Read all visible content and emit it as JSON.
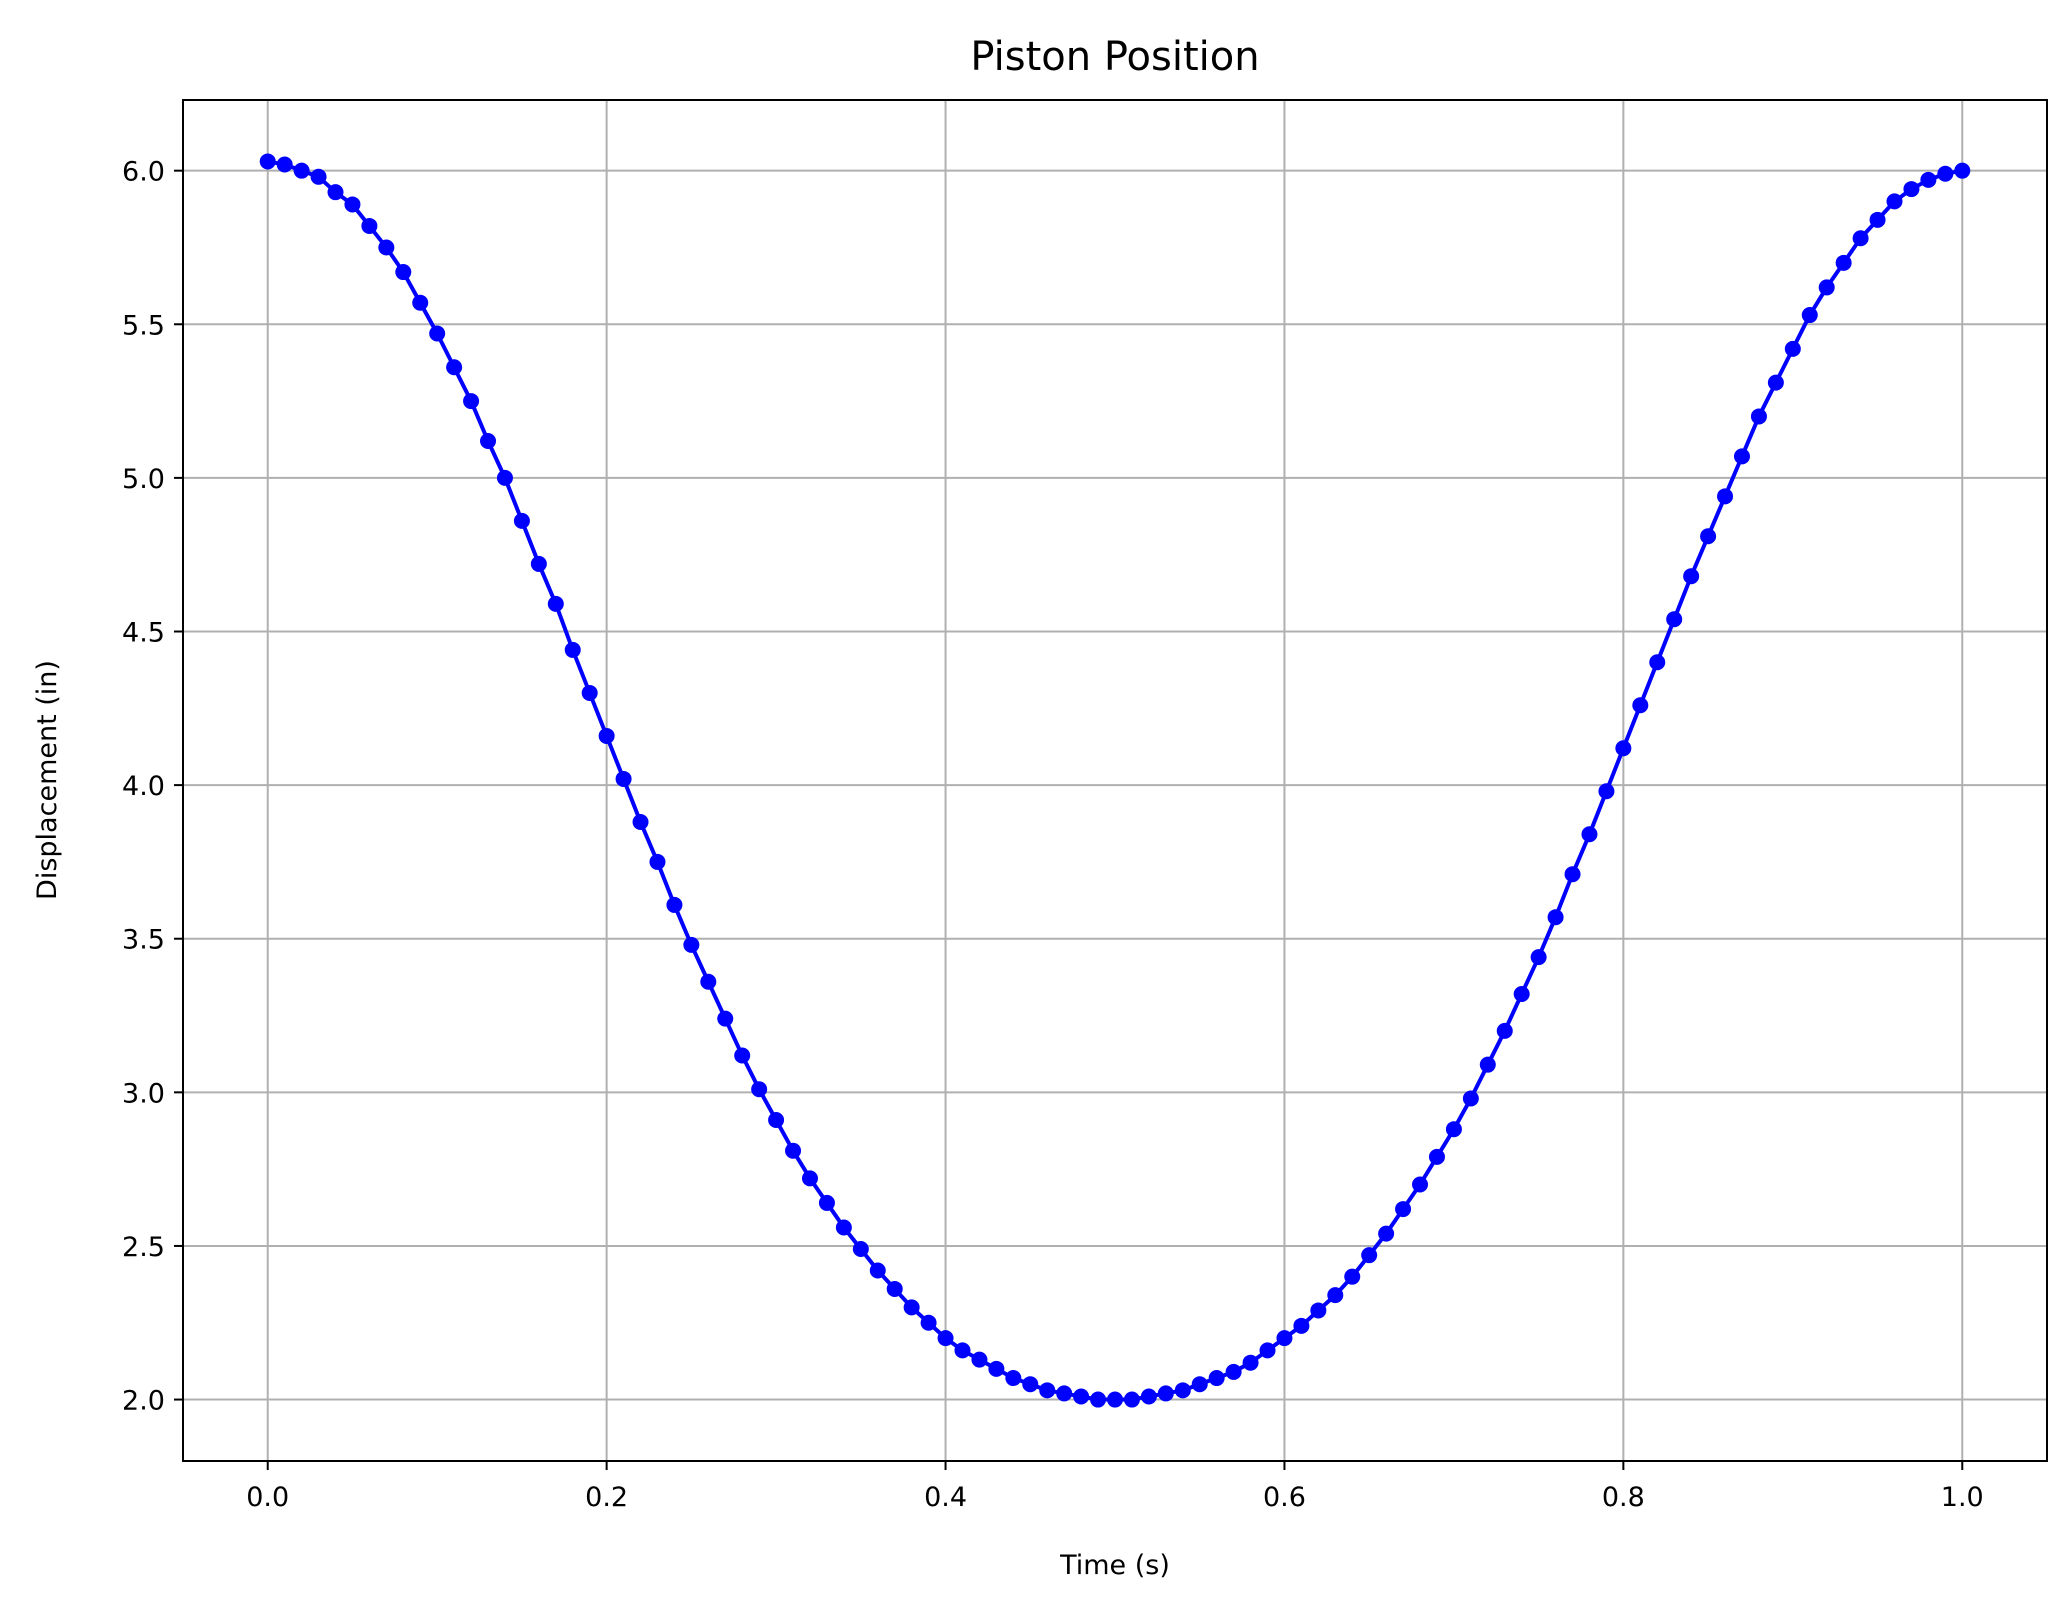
{
  "chart_data": {
    "type": "line",
    "title": "Piston Position",
    "xlabel": "Time (s)",
    "ylabel": "Displacement (in)",
    "xlim": [
      -0.05,
      1.05
    ],
    "ylim": [
      1.8,
      6.23
    ],
    "xticks": [
      0.0,
      0.2,
      0.4,
      0.6,
      0.8,
      1.0
    ],
    "xtick_labels": [
      "0.0",
      "0.2",
      "0.4",
      "0.6",
      "0.8",
      "1.0"
    ],
    "yticks": [
      2.0,
      2.5,
      3.0,
      3.5,
      4.0,
      4.5,
      5.0,
      5.5,
      6.0
    ],
    "ytick_labels": [
      "2.0",
      "2.5",
      "3.0",
      "3.5",
      "4.0",
      "4.5",
      "5.0",
      "5.5",
      "6.0"
    ],
    "grid": true,
    "legend": false,
    "series": [
      {
        "color": "#0000ff",
        "marker": "circle",
        "x": [
          0.0,
          0.01,
          0.02,
          0.03,
          0.04,
          0.05,
          0.06,
          0.07,
          0.08,
          0.09,
          0.1,
          0.11,
          0.12,
          0.13,
          0.14,
          0.15,
          0.16,
          0.17,
          0.18,
          0.19,
          0.2,
          0.21,
          0.22,
          0.23,
          0.24,
          0.25,
          0.26,
          0.27,
          0.28,
          0.29,
          0.3,
          0.31,
          0.32,
          0.33,
          0.34,
          0.35,
          0.36,
          0.37,
          0.38,
          0.39,
          0.4,
          0.41,
          0.42,
          0.43,
          0.44,
          0.45,
          0.46,
          0.47,
          0.48,
          0.49,
          0.5,
          0.51,
          0.52,
          0.53,
          0.54,
          0.55,
          0.56,
          0.57,
          0.58,
          0.59,
          0.6,
          0.61,
          0.62,
          0.63,
          0.64,
          0.65,
          0.66,
          0.67,
          0.68,
          0.69,
          0.7,
          0.71,
          0.72,
          0.73,
          0.74,
          0.75,
          0.76,
          0.77,
          0.78,
          0.79,
          0.8,
          0.81,
          0.82,
          0.83,
          0.84,
          0.85,
          0.86,
          0.87,
          0.88,
          0.89,
          0.9,
          0.91,
          0.92,
          0.93,
          0.94,
          0.95,
          0.96,
          0.97,
          0.98,
          0.99,
          1.0
        ],
        "values": [
          6.03,
          6.02,
          6.0,
          5.98,
          5.93,
          5.89,
          5.82,
          5.75,
          5.67,
          5.57,
          5.47,
          5.36,
          5.25,
          5.12,
          5.0,
          4.86,
          4.72,
          4.59,
          4.44,
          4.3,
          4.16,
          4.02,
          3.88,
          3.75,
          3.61,
          3.48,
          3.36,
          3.24,
          3.12,
          3.01,
          2.91,
          2.81,
          2.72,
          2.64,
          2.56,
          2.49,
          2.42,
          2.36,
          2.3,
          2.25,
          2.2,
          2.16,
          2.13,
          2.1,
          2.07,
          2.05,
          2.03,
          2.02,
          2.01,
          2.0,
          2.0,
          2.0,
          2.01,
          2.02,
          2.03,
          2.05,
          2.07,
          2.09,
          2.12,
          2.16,
          2.2,
          2.24,
          2.29,
          2.34,
          2.4,
          2.47,
          2.54,
          2.62,
          2.7,
          2.79,
          2.88,
          2.98,
          3.09,
          3.2,
          3.32,
          3.44,
          3.57,
          3.71,
          3.84,
          3.98,
          4.12,
          4.26,
          4.4,
          4.54,
          4.68,
          4.81,
          4.94,
          5.07,
          5.2,
          5.31,
          5.42,
          5.53,
          5.62,
          5.7,
          5.78,
          5.84,
          5.9,
          5.94,
          5.97,
          5.99,
          6.0
        ]
      }
    ]
  }
}
